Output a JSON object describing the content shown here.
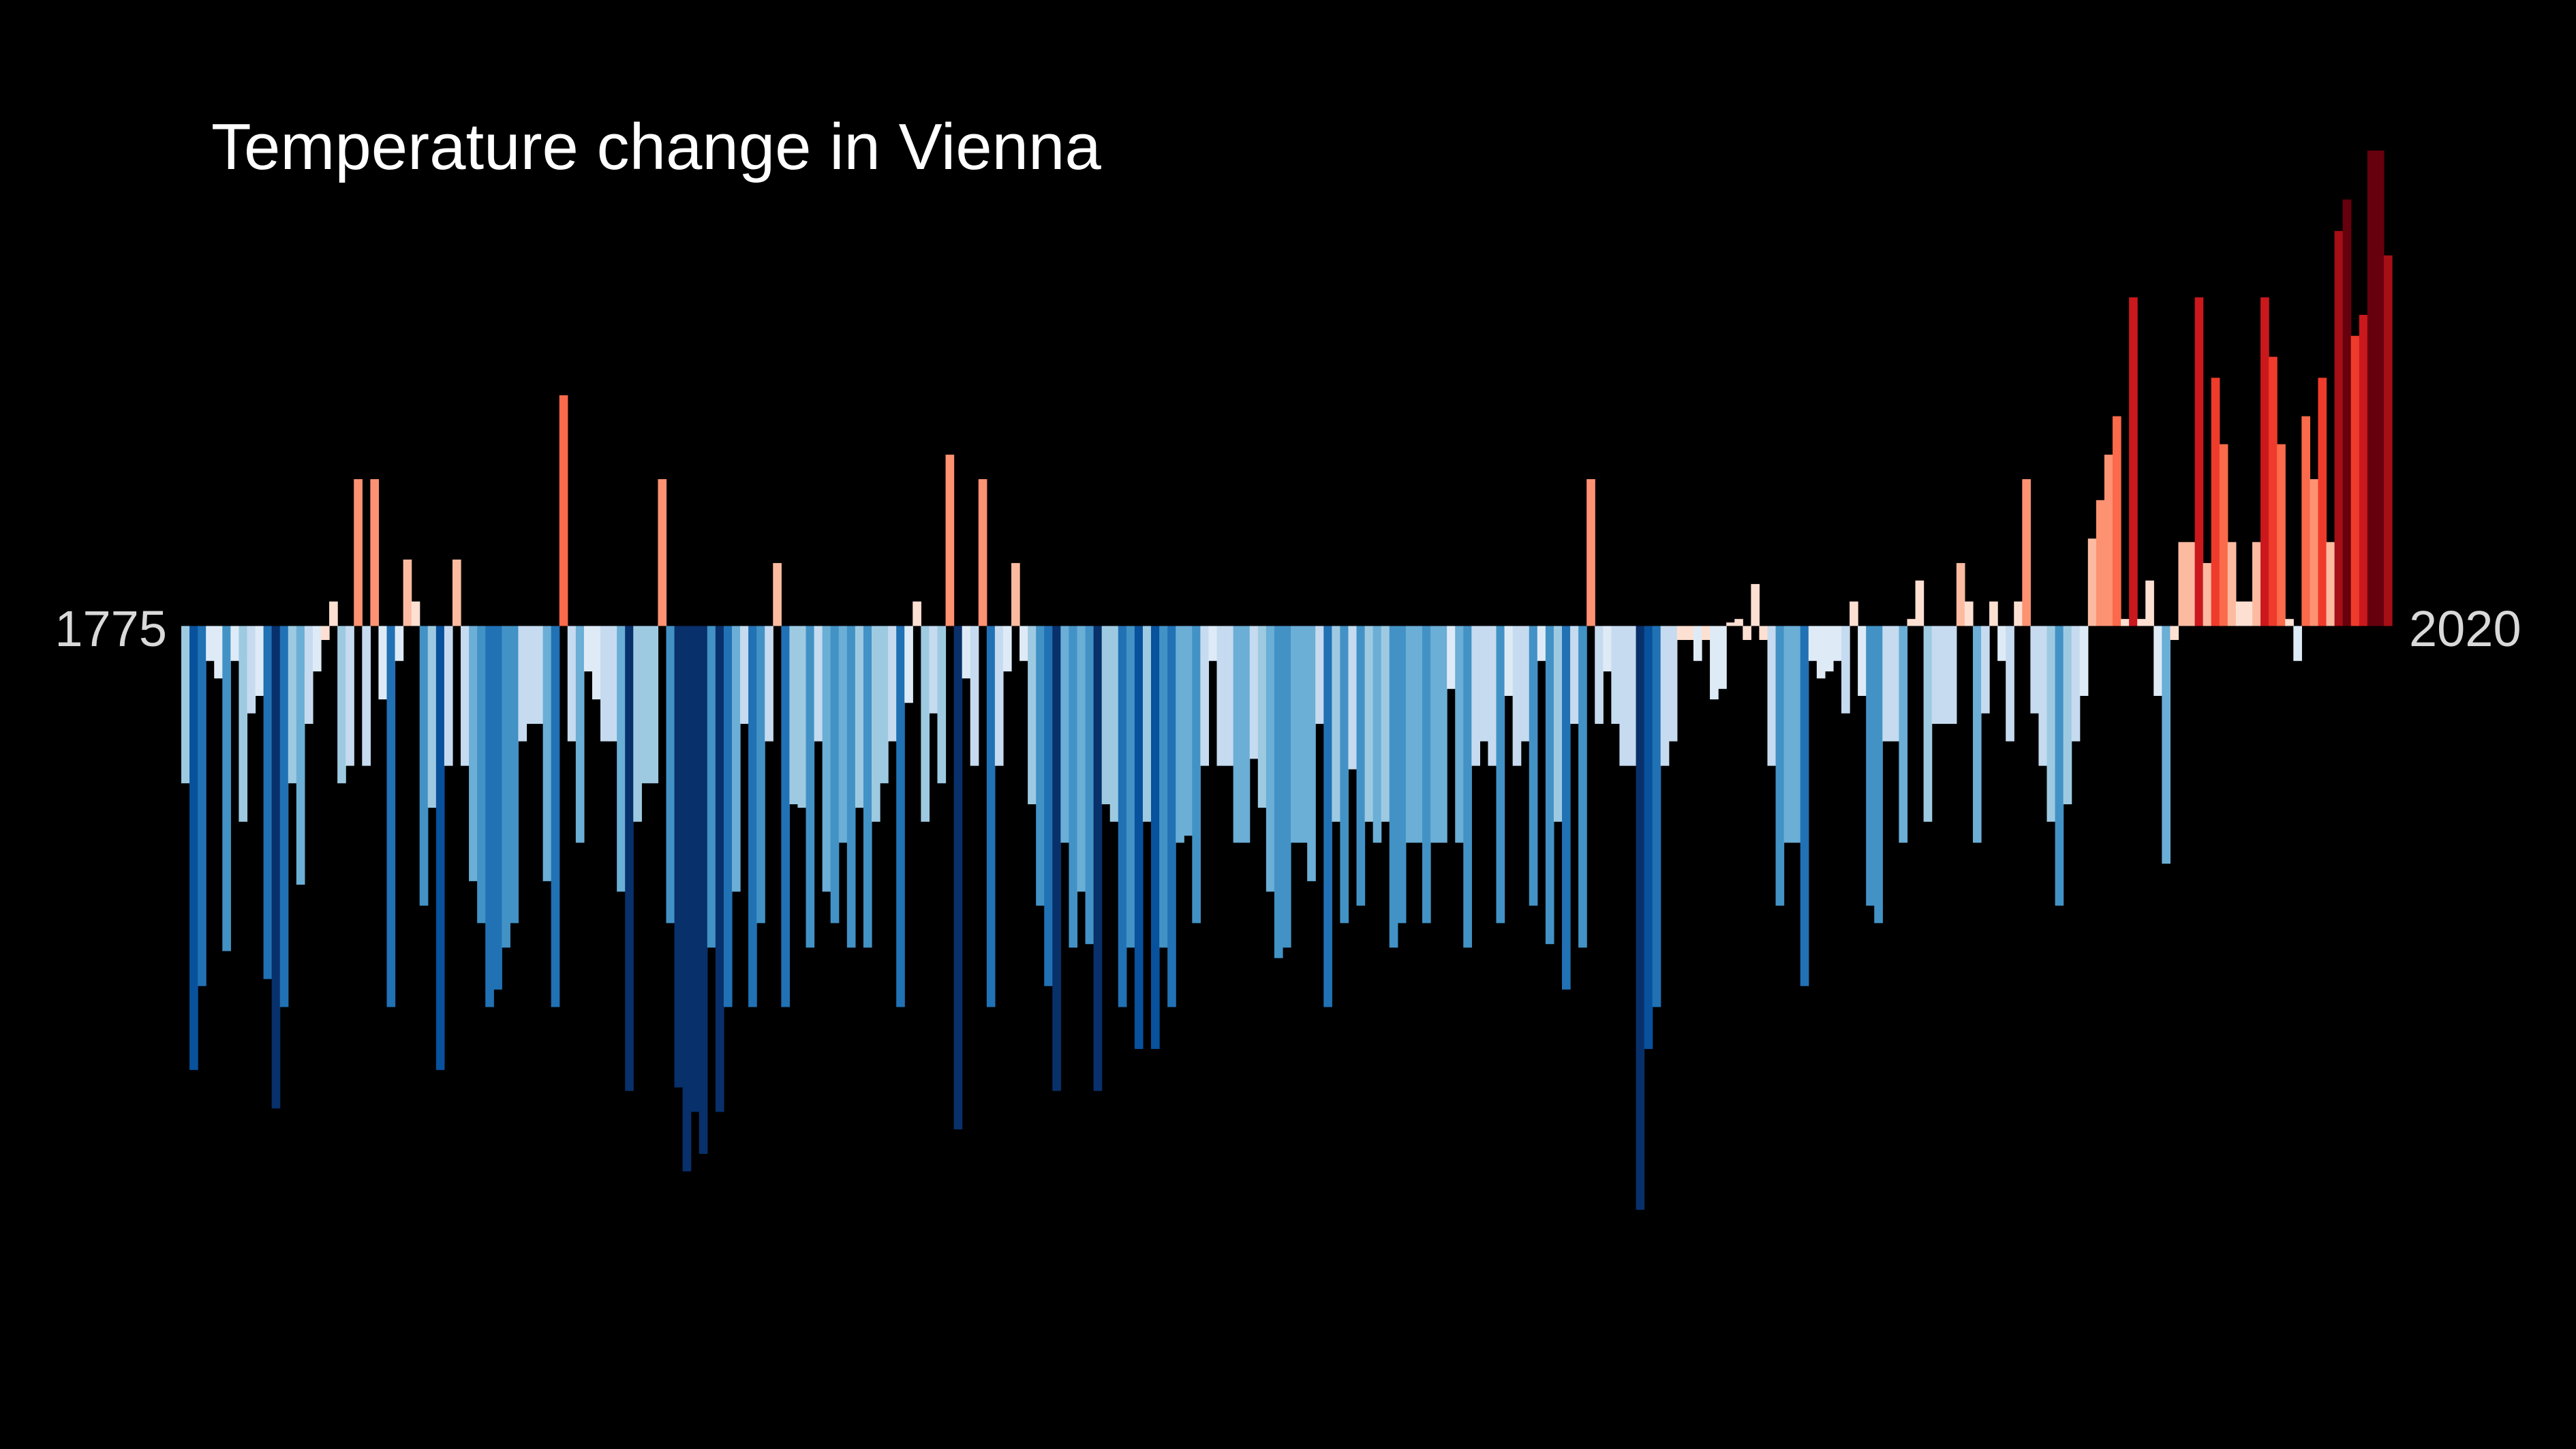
{
  "chart_data": {
    "type": "bar",
    "title": "Temperature change in Vienna",
    "xlabel": "",
    "ylabel": "",
    "start_label": "1775",
    "end_label": "2020",
    "x_start": 1775,
    "x_end": 2020,
    "ylim": [
      -1.9,
      1.35
    ],
    "grid": false,
    "legend": "none",
    "color_scale": [
      "#08306b",
      "#08519c",
      "#2171b5",
      "#4292c6",
      "#6baed6",
      "#9ecae1",
      "#c6dbef",
      "#deebf7",
      "#fee0d2",
      "#fcbba1",
      "#fc9272",
      "#fb6a4a",
      "#ef3b2c",
      "#cb181d",
      "#a50f15",
      "#67000d"
    ],
    "values": [
      -0.45,
      -1.27,
      -1.03,
      -0.1,
      -0.15,
      -0.93,
      -0.1,
      -0.56,
      -0.25,
      -0.2,
      -1.01,
      -1.38,
      -1.09,
      -0.45,
      -0.74,
      -0.28,
      -0.13,
      -0.04,
      0.07,
      -0.45,
      -0.4,
      0.42,
      -0.4,
      0.42,
      -0.21,
      -1.09,
      -0.1,
      0.19,
      0.07,
      -0.8,
      -0.52,
      -1.27,
      -0.4,
      0.19,
      -0.4,
      -0.73,
      -0.85,
      -1.09,
      -1.04,
      -0.92,
      -0.85,
      -0.33,
      -0.28,
      -0.28,
      -0.73,
      -1.09,
      0.66,
      -0.33,
      -0.62,
      -0.13,
      -0.21,
      -0.33,
      -0.33,
      -0.76,
      -1.33,
      -0.56,
      -0.45,
      -0.45,
      0.42,
      -0.85,
      -1.32,
      -1.56,
      -1.39,
      -1.51,
      -0.92,
      -1.39,
      -1.09,
      -0.76,
      -0.28,
      -1.09,
      -0.85,
      -0.33,
      0.18,
      -1.09,
      -0.51,
      -0.52,
      -0.92,
      -0.33,
      -0.76,
      -0.85,
      -0.62,
      -0.92,
      -0.52,
      -0.92,
      -0.56,
      -0.45,
      -0.33,
      -1.09,
      -0.22,
      0.07,
      -0.56,
      -0.25,
      -0.45,
      0.49,
      -1.44,
      -0.15,
      -0.4,
      0.42,
      -1.09,
      -0.4,
      -0.13,
      0.18,
      -0.1,
      -0.51,
      -0.8,
      -1.03,
      -1.33,
      -0.62,
      -0.92,
      -0.76,
      -0.91,
      -1.33,
      -0.51,
      -0.56,
      -1.09,
      -0.92,
      -1.21,
      -0.56,
      -1.21,
      -0.92,
      -1.09,
      -0.62,
      -0.6,
      -0.85,
      -0.4,
      -0.1,
      -0.4,
      -0.4,
      -0.62,
      -0.62,
      -0.38,
      -0.52,
      -0.76,
      -0.95,
      -0.92,
      -0.62,
      -0.62,
      -0.73,
      -0.28,
      -1.09,
      -0.56,
      -0.85,
      -0.41,
      -0.8,
      -0.56,
      -0.62,
      -0.56,
      -0.92,
      -0.85,
      -0.62,
      -0.62,
      -0.85,
      -0.62,
      -0.62,
      -0.18,
      -0.62,
      -0.92,
      -0.4,
      -0.33,
      -0.4,
      -0.85,
      -0.2,
      -0.4,
      -0.33,
      -0.8,
      -0.1,
      -0.91,
      -0.56,
      -1.04,
      -0.28,
      -0.92,
      0.42,
      -0.28,
      -0.13,
      -0.28,
      -0.4,
      -0.4,
      -1.67,
      -1.21,
      -1.09,
      -0.4,
      -0.33,
      -0.04,
      -0.04,
      -0.1,
      -0.04,
      -0.21,
      -0.18,
      0.01,
      0.02,
      -0.04,
      0.12,
      -0.04,
      -0.4,
      -0.8,
      -0.62,
      -0.62,
      -1.03,
      -0.1,
      -0.15,
      -0.13,
      -0.1,
      -0.25,
      0.07,
      -0.2,
      -0.8,
      -0.85,
      -0.33,
      -0.33,
      -0.62,
      0.02,
      0.13,
      -0.56,
      -0.28,
      -0.28,
      -0.28,
      0.18,
      0.07,
      -0.62,
      -0.25,
      0.07,
      -0.1,
      -0.33,
      0.07,
      0.42,
      -0.25,
      -0.4,
      -0.56,
      -0.8,
      -0.51,
      -0.33,
      -0.2,
      0.25,
      0.36,
      0.49,
      0.6,
      0.02,
      0.94,
      0.02,
      0.13,
      -0.2,
      -0.68,
      -0.04,
      0.24,
      0.24,
      0.94,
      0.18,
      0.71,
      0.52,
      0.24,
      0.07,
      0.07,
      0.24,
      0.94,
      0.77,
      0.52,
      0.02,
      -0.1,
      0.6,
      0.42,
      0.71,
      0.24,
      1.13,
      1.22,
      0.83,
      0.89,
      1.36,
      1.36,
      1.06
    ]
  }
}
